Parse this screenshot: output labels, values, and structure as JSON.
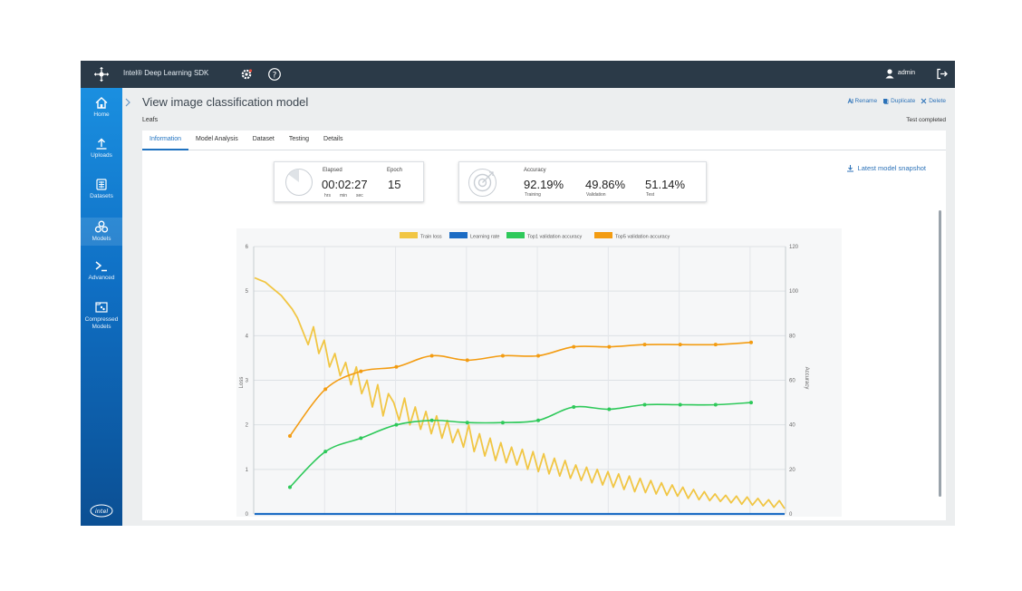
{
  "topbar": {
    "brand": "Intel® Deep Learning SDK",
    "user": "admin",
    "icons": [
      "network-logo-icon",
      "settings-icon",
      "help-icon",
      "user-icon",
      "logout-icon"
    ]
  },
  "sidebar": {
    "items": [
      {
        "label": "Home",
        "icon": "home-icon"
      },
      {
        "label": "Uploads",
        "icon": "upload-icon"
      },
      {
        "label": "Datasets",
        "icon": "dataset-icon"
      },
      {
        "label": "Models",
        "icon": "models-icon"
      },
      {
        "label": "Advanced",
        "icon": "terminal-icon"
      },
      {
        "label": "Compressed",
        "label2": "Models",
        "icon": "compressed-icon"
      }
    ],
    "footer_logo": "intel"
  },
  "page": {
    "title": "View image classification model",
    "breadcrumb": "Leafs",
    "status": "Test completed",
    "actions": {
      "rename": "Rename",
      "duplicate": "Duplicate",
      "delete": "Delete"
    }
  },
  "tabs": [
    "Information",
    "Model Analysis",
    "Dataset",
    "Testing",
    "Details"
  ],
  "elapsed_card": {
    "elapsed_label": "Elapsed",
    "elapsed_value": "00:02:27",
    "unit_hrs": "hrs",
    "unit_min": "min",
    "unit_sec": "sec",
    "epoch_label": "Epoch",
    "epoch_value": "15"
  },
  "accuracy_card": {
    "title": "Accuracy",
    "training_value": "92.19%",
    "training_label": "Training",
    "validation_value": "49.86%",
    "validation_label": "Validation",
    "test_value": "51.14%",
    "test_label": "Test"
  },
  "snapshot_link": "Latest model snapshot",
  "colors": {
    "train_loss": "#f1c644",
    "learning_rate": "#1c6cc4",
    "top1": "#2ec95a",
    "top5": "#f39c12",
    "accent": "#1f72c0"
  },
  "chart_data": {
    "type": "line",
    "legend": [
      "Train loss",
      "Learning rate",
      "Top1 validation accuracy",
      "Top5 validation accuracy"
    ],
    "legend_position": "top",
    "ylabel_left": "Loss",
    "ylabel_right": "Accuracy",
    "ylim_left": [
      0,
      6
    ],
    "ylim_right": [
      0,
      120
    ],
    "yticks_left": [
      0,
      1,
      2,
      3,
      4,
      5,
      6
    ],
    "yticks_right": [
      0,
      20,
      40,
      60,
      80,
      100,
      120
    ],
    "grid": true,
    "epochs": 15,
    "series": [
      {
        "name": "Top5 validation accuracy",
        "axis": "right",
        "values": [
          35,
          56,
          64,
          66,
          71,
          69,
          71,
          71,
          75,
          75,
          76,
          76,
          76,
          77
        ]
      },
      {
        "name": "Top1 validation accuracy",
        "axis": "right",
        "values": [
          12,
          28,
          34,
          40,
          42,
          41,
          41,
          42,
          48,
          47,
          49,
          49,
          49,
          50
        ]
      },
      {
        "name": "Learning rate",
        "axis": "left",
        "values": [
          0,
          0
        ]
      },
      {
        "name": "Train loss",
        "axis": "left",
        "values": [
          5.3,
          5.25,
          5.2,
          5.1,
          5.0,
          4.9,
          4.75,
          4.6,
          4.4,
          4.1,
          3.8,
          4.2,
          3.6,
          3.9,
          3.3,
          3.6,
          3.1,
          3.4,
          2.9,
          3.3,
          2.7,
          3.0,
          2.4,
          2.9,
          2.2,
          2.7,
          2.5,
          2.1,
          2.6,
          2.0,
          2.4,
          1.9,
          2.3,
          1.8,
          2.2,
          1.7,
          2.1,
          1.6,
          1.9,
          1.5,
          2.0,
          1.4,
          1.8,
          1.3,
          1.7,
          1.2,
          1.6,
          1.15,
          1.5,
          1.1,
          1.45,
          1.0,
          1.4,
          0.95,
          1.35,
          0.9,
          1.25,
          0.85,
          1.2,
          0.8,
          1.1,
          0.75,
          1.05,
          0.7,
          1.0,
          0.65,
          0.95,
          0.6,
          0.9,
          0.55,
          0.85,
          0.5,
          0.8,
          0.48,
          0.75,
          0.45,
          0.7,
          0.42,
          0.65,
          0.4,
          0.6,
          0.35,
          0.55,
          0.32,
          0.5,
          0.3,
          0.45,
          0.28,
          0.42,
          0.25,
          0.4,
          0.22,
          0.38,
          0.2,
          0.35,
          0.18,
          0.32,
          0.15,
          0.3,
          0.12
        ]
      }
    ]
  }
}
